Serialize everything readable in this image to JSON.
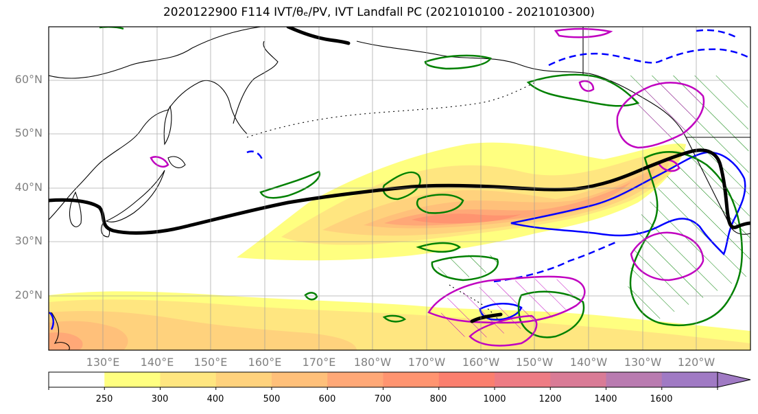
{
  "title": "2020122900 F114 IVT/θₑ/PV, IVT Landfall PC (2021010100 - 2021010300)",
  "lat_labels": [
    "60°N",
    "50°N",
    "40°N",
    "30°N",
    "20°N"
  ],
  "lon_labels": [
    "130°E",
    "140°E",
    "150°E",
    "160°E",
    "170°E",
    "180°W",
    "170°W",
    "160°W",
    "150°W",
    "140°W",
    "130°W",
    "120°W"
  ],
  "colorbar": {
    "levels": [
      "250",
      "300",
      "400",
      "500",
      "600",
      "700",
      "800",
      "1000",
      "1200",
      "1400",
      "1600"
    ],
    "colors": [
      "#ffffff",
      "#ffff80",
      "#ffe680",
      "#ffd27d",
      "#ffc07a",
      "#ffa877",
      "#ff9470",
      "#fb7f6e",
      "#ee7c84",
      "#d97b96",
      "#b97bb0",
      "#a07ac4"
    ]
  },
  "contour_colors": {
    "theta_e": "#008000",
    "pv_positive": "#c000c0",
    "pv_negative": "#0000ff",
    "landfall_pc": "#000000"
  }
}
